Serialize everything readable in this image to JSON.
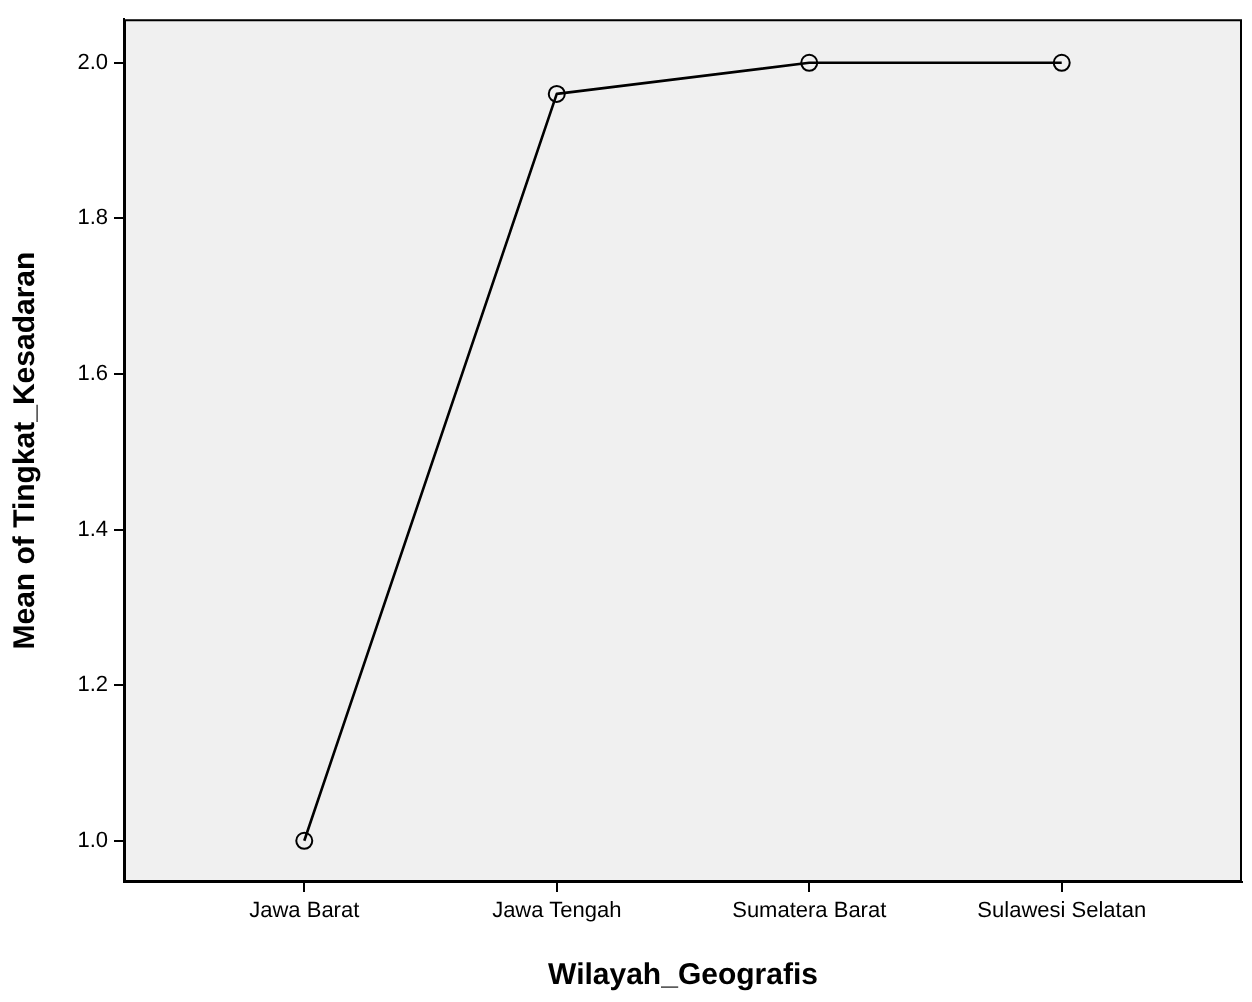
{
  "chart_data": {
    "type": "line",
    "xlabel": "Wilayah_Geografis",
    "ylabel": "Mean of Tingkat_Kesadaran",
    "categories": [
      "Jawa Barat",
      "Jawa Tengah",
      "Sumatera Barat",
      "Sulawesi Selatan"
    ],
    "values": [
      1.0,
      1.96,
      2.0,
      2.0
    ],
    "color": "#000000",
    "ylim": [
      0.947,
      2.056
    ],
    "yticks": [
      {
        "value": 1.0,
        "label": "1.0"
      },
      {
        "value": 1.2,
        "label": "1.2"
      },
      {
        "value": 1.4,
        "label": "1.4"
      },
      {
        "value": 1.6,
        "label": "1.6"
      },
      {
        "value": 1.8,
        "label": "1.8"
      },
      {
        "value": 2.0,
        "label": "2.0"
      }
    ],
    "grid": false,
    "legend": false,
    "marker": "circle",
    "line_style": "solid"
  }
}
